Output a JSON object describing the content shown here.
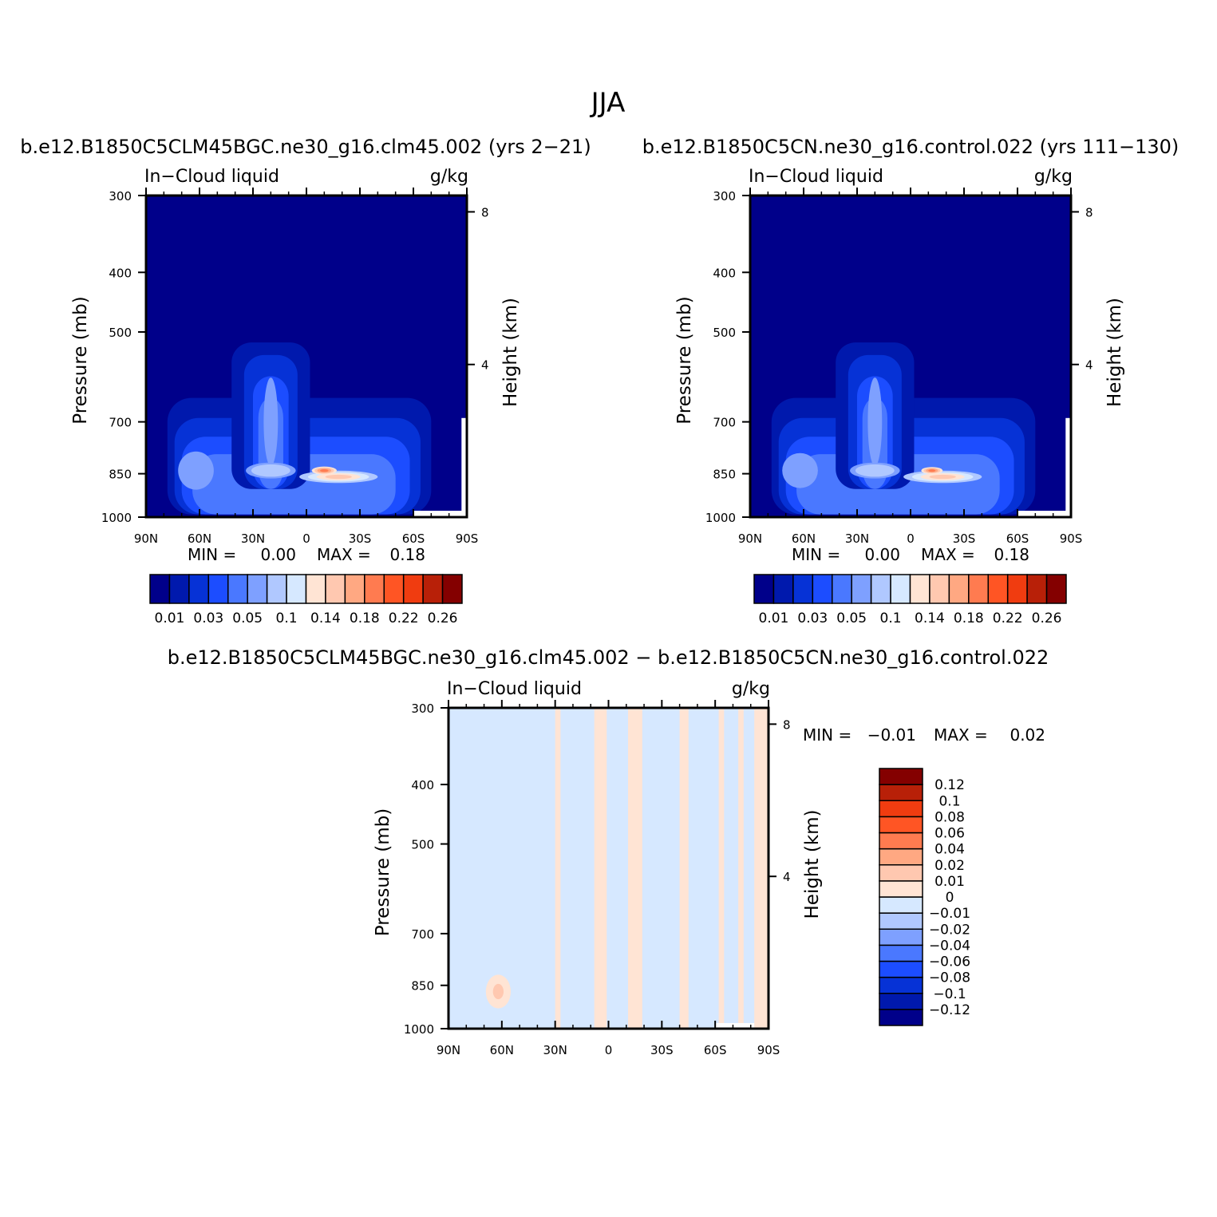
{
  "figure_title": "JJA",
  "chart_data": [
    {
      "type": "heatmap",
      "title": "b.e12.B1850C5CLM45BGC.ne30_g16.clm45.002 (yrs 2−21)",
      "left_label": "In−Cloud liquid",
      "units": "g/kg",
      "xlabel": "",
      "ylabel": "Pressure (mb)",
      "ylabel_right": "Height (km)",
      "x_ticks": [
        "90N",
        "60N",
        "30N",
        "0",
        "30S",
        "60S",
        "90S"
      ],
      "x_tick_values": [
        90,
        60,
        30,
        0,
        -30,
        -60,
        -90
      ],
      "y_ticks": [
        "300",
        "400",
        "500",
        "700",
        "850",
        "1000"
      ],
      "y_tick_values": [
        300,
        400,
        500,
        700,
        850,
        1000
      ],
      "y_right_ticks": [
        "8",
        "4"
      ],
      "y_right_tick_values": [
        8,
        4
      ],
      "xlim": [
        90,
        -90
      ],
      "ylim": [
        1000,
        300
      ],
      "y_scale": "log",
      "stats": {
        "min_label": "MIN =",
        "min_value": "0.00",
        "max_label": "MAX =",
        "max_value": "0.18"
      },
      "colorbar": {
        "orientation": "horizontal",
        "colors": [
          "#00008a",
          "#0019ad",
          "#0632d6",
          "#1c4dff",
          "#4a78ff",
          "#7ea0ff",
          "#b0c8ff",
          "#d6e8ff",
          "#ffe4d4",
          "#ffc8b0",
          "#ffa882",
          "#ff7b50",
          "#ff5524",
          "#f03c10",
          "#b82008",
          "#840000"
        ],
        "labels": [
          "0.01",
          "0.03",
          "0.05",
          "0.1",
          "0.14",
          "0.18",
          "0.22",
          "0.26"
        ]
      },
      "features": [
        {
          "x": 62,
          "p": 840,
          "level": 5,
          "rx": 10,
          "rp": 120
        },
        {
          "x": 20,
          "p": 700,
          "level": 5,
          "rx": 4,
          "rp": 230
        },
        {
          "x": 20,
          "p": 840,
          "level": 6,
          "rx": 14,
          "rp": 50
        },
        {
          "x": -18,
          "p": 860,
          "level": 9,
          "rx": 22,
          "rp": 40
        },
        {
          "x": -10,
          "p": 840,
          "level": 11,
          "rx": 7,
          "rp": 25
        }
      ]
    },
    {
      "type": "heatmap",
      "title": "b.e12.B1850C5CN.ne30_g16.control.022 (yrs 111−130)",
      "left_label": "In−Cloud liquid",
      "units": "g/kg",
      "xlabel": "",
      "ylabel": "Pressure (mb)",
      "ylabel_right": "Height (km)",
      "x_ticks": [
        "90N",
        "60N",
        "30N",
        "0",
        "30S",
        "60S",
        "90S"
      ],
      "x_tick_values": [
        90,
        60,
        30,
        0,
        -30,
        -60,
        -90
      ],
      "y_ticks": [
        "300",
        "400",
        "500",
        "700",
        "850",
        "1000"
      ],
      "y_tick_values": [
        300,
        400,
        500,
        700,
        850,
        1000
      ],
      "y_right_ticks": [
        "8",
        "4"
      ],
      "y_right_tick_values": [
        8,
        4
      ],
      "xlim": [
        90,
        -90
      ],
      "ylim": [
        1000,
        300
      ],
      "y_scale": "log",
      "stats": {
        "min_label": "MIN =",
        "min_value": "0.00",
        "max_label": "MAX =",
        "max_value": "0.18"
      },
      "colorbar": {
        "orientation": "horizontal",
        "colors": [
          "#00008a",
          "#0019ad",
          "#0632d6",
          "#1c4dff",
          "#4a78ff",
          "#7ea0ff",
          "#b0c8ff",
          "#d6e8ff",
          "#ffe4d4",
          "#ffc8b0",
          "#ffa882",
          "#ff7b50",
          "#ff5524",
          "#f03c10",
          "#b82008",
          "#840000"
        ],
        "labels": [
          "0.01",
          "0.03",
          "0.05",
          "0.1",
          "0.14",
          "0.18",
          "0.22",
          "0.26"
        ]
      },
      "features": [
        {
          "x": 62,
          "p": 840,
          "level": 5,
          "rx": 10,
          "rp": 110
        },
        {
          "x": 20,
          "p": 700,
          "level": 5,
          "rx": 4,
          "rp": 230
        },
        {
          "x": 20,
          "p": 840,
          "level": 6,
          "rx": 14,
          "rp": 50
        },
        {
          "x": -18,
          "p": 860,
          "level": 9,
          "rx": 22,
          "rp": 40
        },
        {
          "x": -12,
          "p": 840,
          "level": 11,
          "rx": 6,
          "rp": 22
        }
      ]
    },
    {
      "type": "heatmap",
      "title": "b.e12.B1850C5CLM45BGC.ne30_g16.clm45.002 − b.e12.B1850C5CN.ne30_g16.control.022",
      "left_label": "In−Cloud liquid",
      "units": "g/kg",
      "xlabel": "",
      "ylabel": "Pressure (mb)",
      "ylabel_right": "Height (km)",
      "x_ticks": [
        "90N",
        "60N",
        "30N",
        "0",
        "30S",
        "60S",
        "90S"
      ],
      "x_tick_values": [
        90,
        60,
        30,
        0,
        -30,
        -60,
        -90
      ],
      "y_ticks": [
        "300",
        "400",
        "500",
        "700",
        "850",
        "1000"
      ],
      "y_tick_values": [
        300,
        400,
        500,
        700,
        850,
        1000
      ],
      "y_right_ticks": [
        "8",
        "4"
      ],
      "y_right_tick_values": [
        8,
        4
      ],
      "xlim": [
        90,
        -90
      ],
      "ylim": [
        1000,
        300
      ],
      "y_scale": "log",
      "stats": {
        "min_label": "MIN =",
        "min_value": "−0.01",
        "max_label": "MAX =",
        "max_value": "0.02"
      },
      "colorbar": {
        "orientation": "vertical",
        "colors": [
          "#00008a",
          "#0019ad",
          "#0632d6",
          "#1c4dff",
          "#4a78ff",
          "#7ea0ff",
          "#b0c8ff",
          "#d6e8ff",
          "#ffe4d4",
          "#ffc8b0",
          "#ffa882",
          "#ff7b50",
          "#ff5524",
          "#f03c10",
          "#b82008",
          "#840000"
        ],
        "labels": [
          "−0.12",
          "−0.1",
          "−0.08",
          "−0.06",
          "−0.04",
          "−0.02",
          "−0.01",
          "0",
          "0.01",
          "0.02",
          "0.04",
          "0.06",
          "0.08",
          "0.1",
          "0.12"
        ]
      },
      "background_level": 7,
      "positive_bands": [
        {
          "x1": 30,
          "x2": 27,
          "level": 8
        },
        {
          "x1": 8,
          "x2": 1,
          "level": 8
        },
        {
          "x1": -11,
          "x2": -19,
          "level": 8
        },
        {
          "x1": -40,
          "x2": -45,
          "level": 8
        },
        {
          "x1": -62,
          "x2": -65,
          "level": 8
        },
        {
          "x1": -73,
          "x2": -76,
          "level": 8
        },
        {
          "x1": -82,
          "x2": -90,
          "level": 8
        }
      ],
      "positive_blobs": [
        {
          "x": 62,
          "p": 870,
          "rx": 7,
          "rp": 110,
          "level": 8
        },
        {
          "x": 62,
          "p": 870,
          "rx": 3,
          "rp": 50,
          "level": 9
        }
      ]
    }
  ]
}
